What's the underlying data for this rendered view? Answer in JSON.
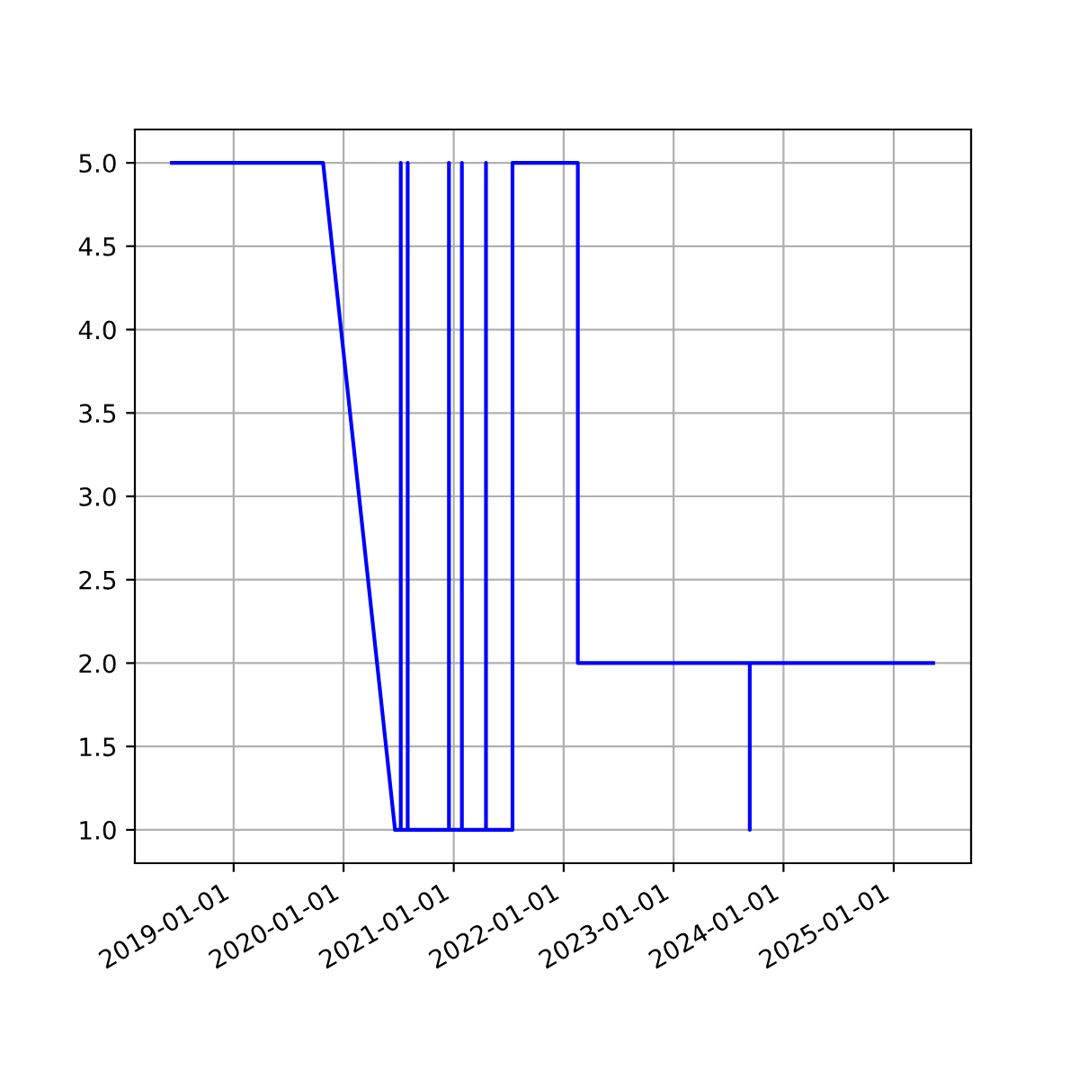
{
  "chart_data": {
    "type": "line",
    "x": [
      "2018-06-10",
      "2019-10-25",
      "2020-06-20",
      "2020-07-09",
      "2020-07-09",
      "2020-07-09",
      "2020-08-01",
      "2020-08-01",
      "2020-08-01",
      "2020-12-16",
      "2020-12-16",
      "2020-12-16",
      "2021-01-28",
      "2021-01-28",
      "2021-01-28",
      "2021-04-18",
      "2021-04-18",
      "2021-04-18",
      "2021-07-15",
      "2021-07-15",
      "2022-02-17",
      "2022-02-17",
      "2023-09-11",
      "2023-09-11",
      "2023-09-11",
      "2025-05-12"
    ],
    "series": [
      {
        "color": "#0000ff",
        "values": [
          5,
          5,
          1,
          1,
          5,
          1,
          1,
          5,
          1,
          1,
          5,
          1,
          1,
          5,
          1,
          1,
          5,
          1,
          1,
          5,
          5,
          2,
          2,
          1,
          2,
          2
        ]
      }
    ],
    "xlim": [
      "2018-02-07",
      "2025-09-15"
    ],
    "xticks": [
      {
        "value": "2019-01-01",
        "label": "2019-01-01"
      },
      {
        "value": "2020-01-01",
        "label": "2020-01-01"
      },
      {
        "value": "2021-01-01",
        "label": "2021-01-01"
      },
      {
        "value": "2022-01-01",
        "label": "2022-01-01"
      },
      {
        "value": "2023-01-01",
        "label": "2023-01-01"
      },
      {
        "value": "2024-01-01",
        "label": "2024-01-01"
      },
      {
        "value": "2025-01-01",
        "label": "2025-01-01"
      }
    ],
    "ylim": [
      0.8,
      5.2
    ],
    "yticks": [
      {
        "value": 1,
        "label": "1.0"
      },
      {
        "value": 1.5,
        "label": "1.5"
      },
      {
        "value": 2,
        "label": "2.0"
      },
      {
        "value": 2.5,
        "label": "2.5"
      },
      {
        "value": 3,
        "label": "3.0"
      },
      {
        "value": 3.5,
        "label": "3.5"
      },
      {
        "value": 4,
        "label": "4.0"
      },
      {
        "value": 4.5,
        "label": "4.5"
      },
      {
        "value": 5,
        "label": "5.0"
      }
    ],
    "grid": true,
    "marker": "none",
    "line_style": "solid"
  }
}
